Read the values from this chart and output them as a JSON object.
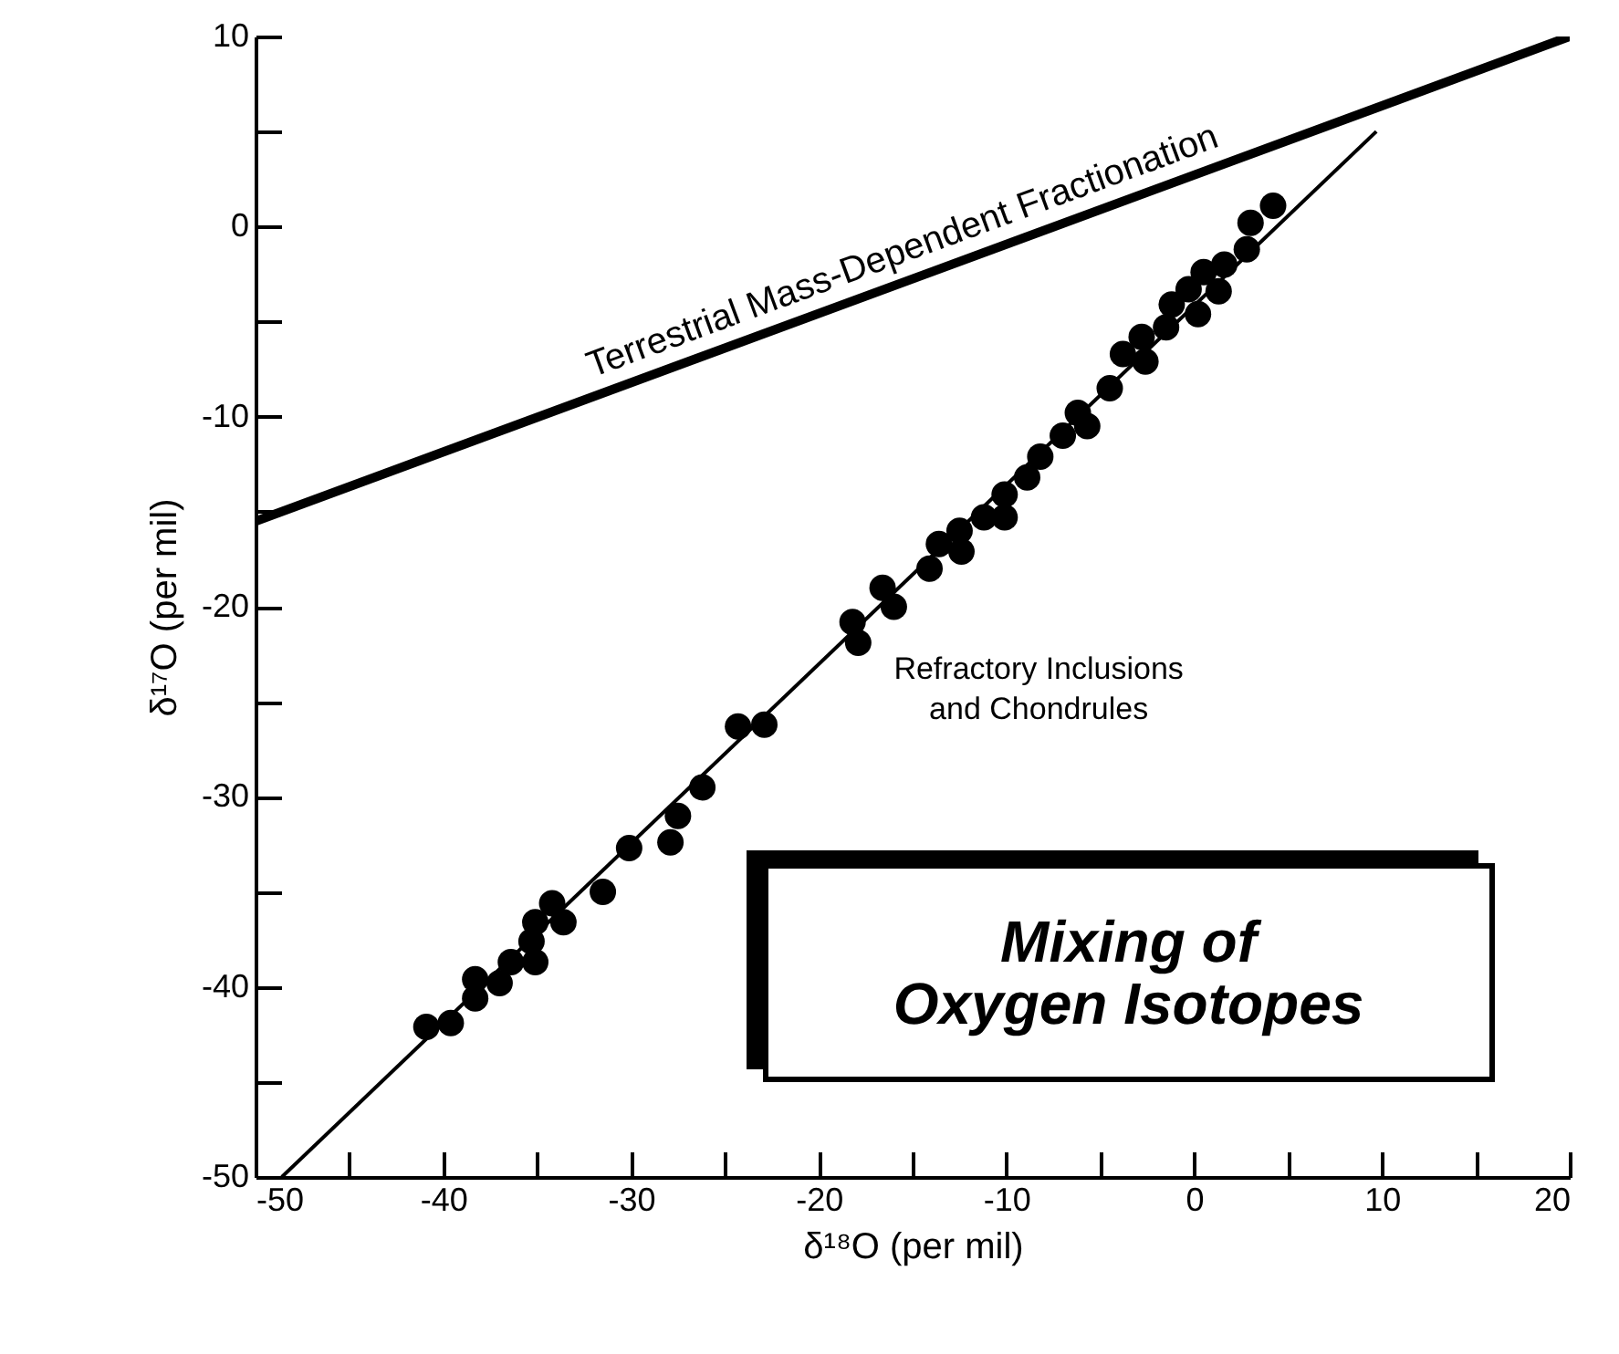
{
  "chart_data": {
    "type": "scatter",
    "xlabel": "δ¹⁸O (per mil)",
    "ylabel": "δ¹⁷O (per mil)",
    "xlim": [
      -50,
      20
    ],
    "ylim": [
      -50,
      10
    ],
    "xticks": [
      -50,
      {
        "value": -45,
        "label": null
      },
      -40,
      {
        "value": -35,
        "label": null
      },
      -30,
      {
        "value": -25,
        "label": null
      },
      -20,
      {
        "value": -15,
        "label": null
      },
      -10,
      {
        "value": -5,
        "label": null
      },
      0,
      {
        "value": 5,
        "label": null
      },
      10,
      {
        "value": 15,
        "label": null
      },
      20
    ],
    "yticks": [
      -50,
      {
        "value": -45,
        "label": null
      },
      -40,
      {
        "value": -35,
        "label": null
      },
      -30,
      {
        "value": -25,
        "label": null
      },
      -20,
      {
        "value": -15,
        "label": null
      },
      -10,
      {
        "value": -5,
        "label": null
      },
      0,
      {
        "value": 5,
        "label": null
      },
      10
    ],
    "grid": false,
    "marker": "circle",
    "series": [
      {
        "type": "line",
        "marker": "none",
        "color": "#000000",
        "x": [
          -50,
          20
        ],
        "values": [
          -15.5,
          10
        ]
      },
      {
        "type": "line",
        "marker": "none",
        "color": "#000000",
        "x": [
          -48.6,
          9.7
        ],
        "values": [
          -50,
          5
        ]
      },
      {
        "color": "#000000",
        "x": [
          -40.9,
          -39.6,
          -38.3,
          -38.3,
          -37.0,
          -36.4,
          -35.1,
          -35.3,
          -35.1,
          -34.2,
          -33.6,
          -31.5,
          -30.1,
          -27.9,
          -27.5,
          -26.2,
          -24.3,
          -22.9,
          -18.2,
          -17.9,
          -16.6,
          -16.0,
          -14.1,
          -13.6,
          -12.5,
          -12.4,
          -11.2,
          -10.1,
          -10.1,
          -8.9,
          -8.2,
          -7.0,
          -6.2,
          -5.7,
          -4.5,
          -3.8,
          -2.6,
          -2.8,
          -1.5,
          -1.2,
          0.2,
          -0.3,
          0.5,
          1.3,
          1.6,
          2.8,
          3.0,
          4.2
        ],
        "values": [
          -42.1,
          -41.9,
          -40.6,
          -39.6,
          -39.8,
          -38.7,
          -38.7,
          -37.6,
          -36.6,
          -35.6,
          -36.6,
          -35.0,
          -32.7,
          -32.4,
          -31.0,
          -29.5,
          -26.3,
          -26.2,
          -20.8,
          -21.9,
          -19.0,
          -20.0,
          -18.0,
          -16.7,
          -16.0,
          -17.1,
          -15.3,
          -14.1,
          -15.3,
          -13.2,
          -12.1,
          -11.0,
          -9.8,
          -10.5,
          -8.5,
          -6.7,
          -7.1,
          -5.8,
          -5.3,
          -4.1,
          -4.6,
          -3.3,
          -2.4,
          -3.4,
          -2.0,
          -1.2,
          0.2,
          1.1
        ]
      }
    ],
    "annotations": [
      {
        "text": "Terrestrial   Mass-Dependent   Fractionation",
        "x": -15,
        "y": -2.75
      },
      "Refractory Inclusions\nand Chondrules",
      "Mixing of\nOxygen Isotopes"
    ]
  }
}
